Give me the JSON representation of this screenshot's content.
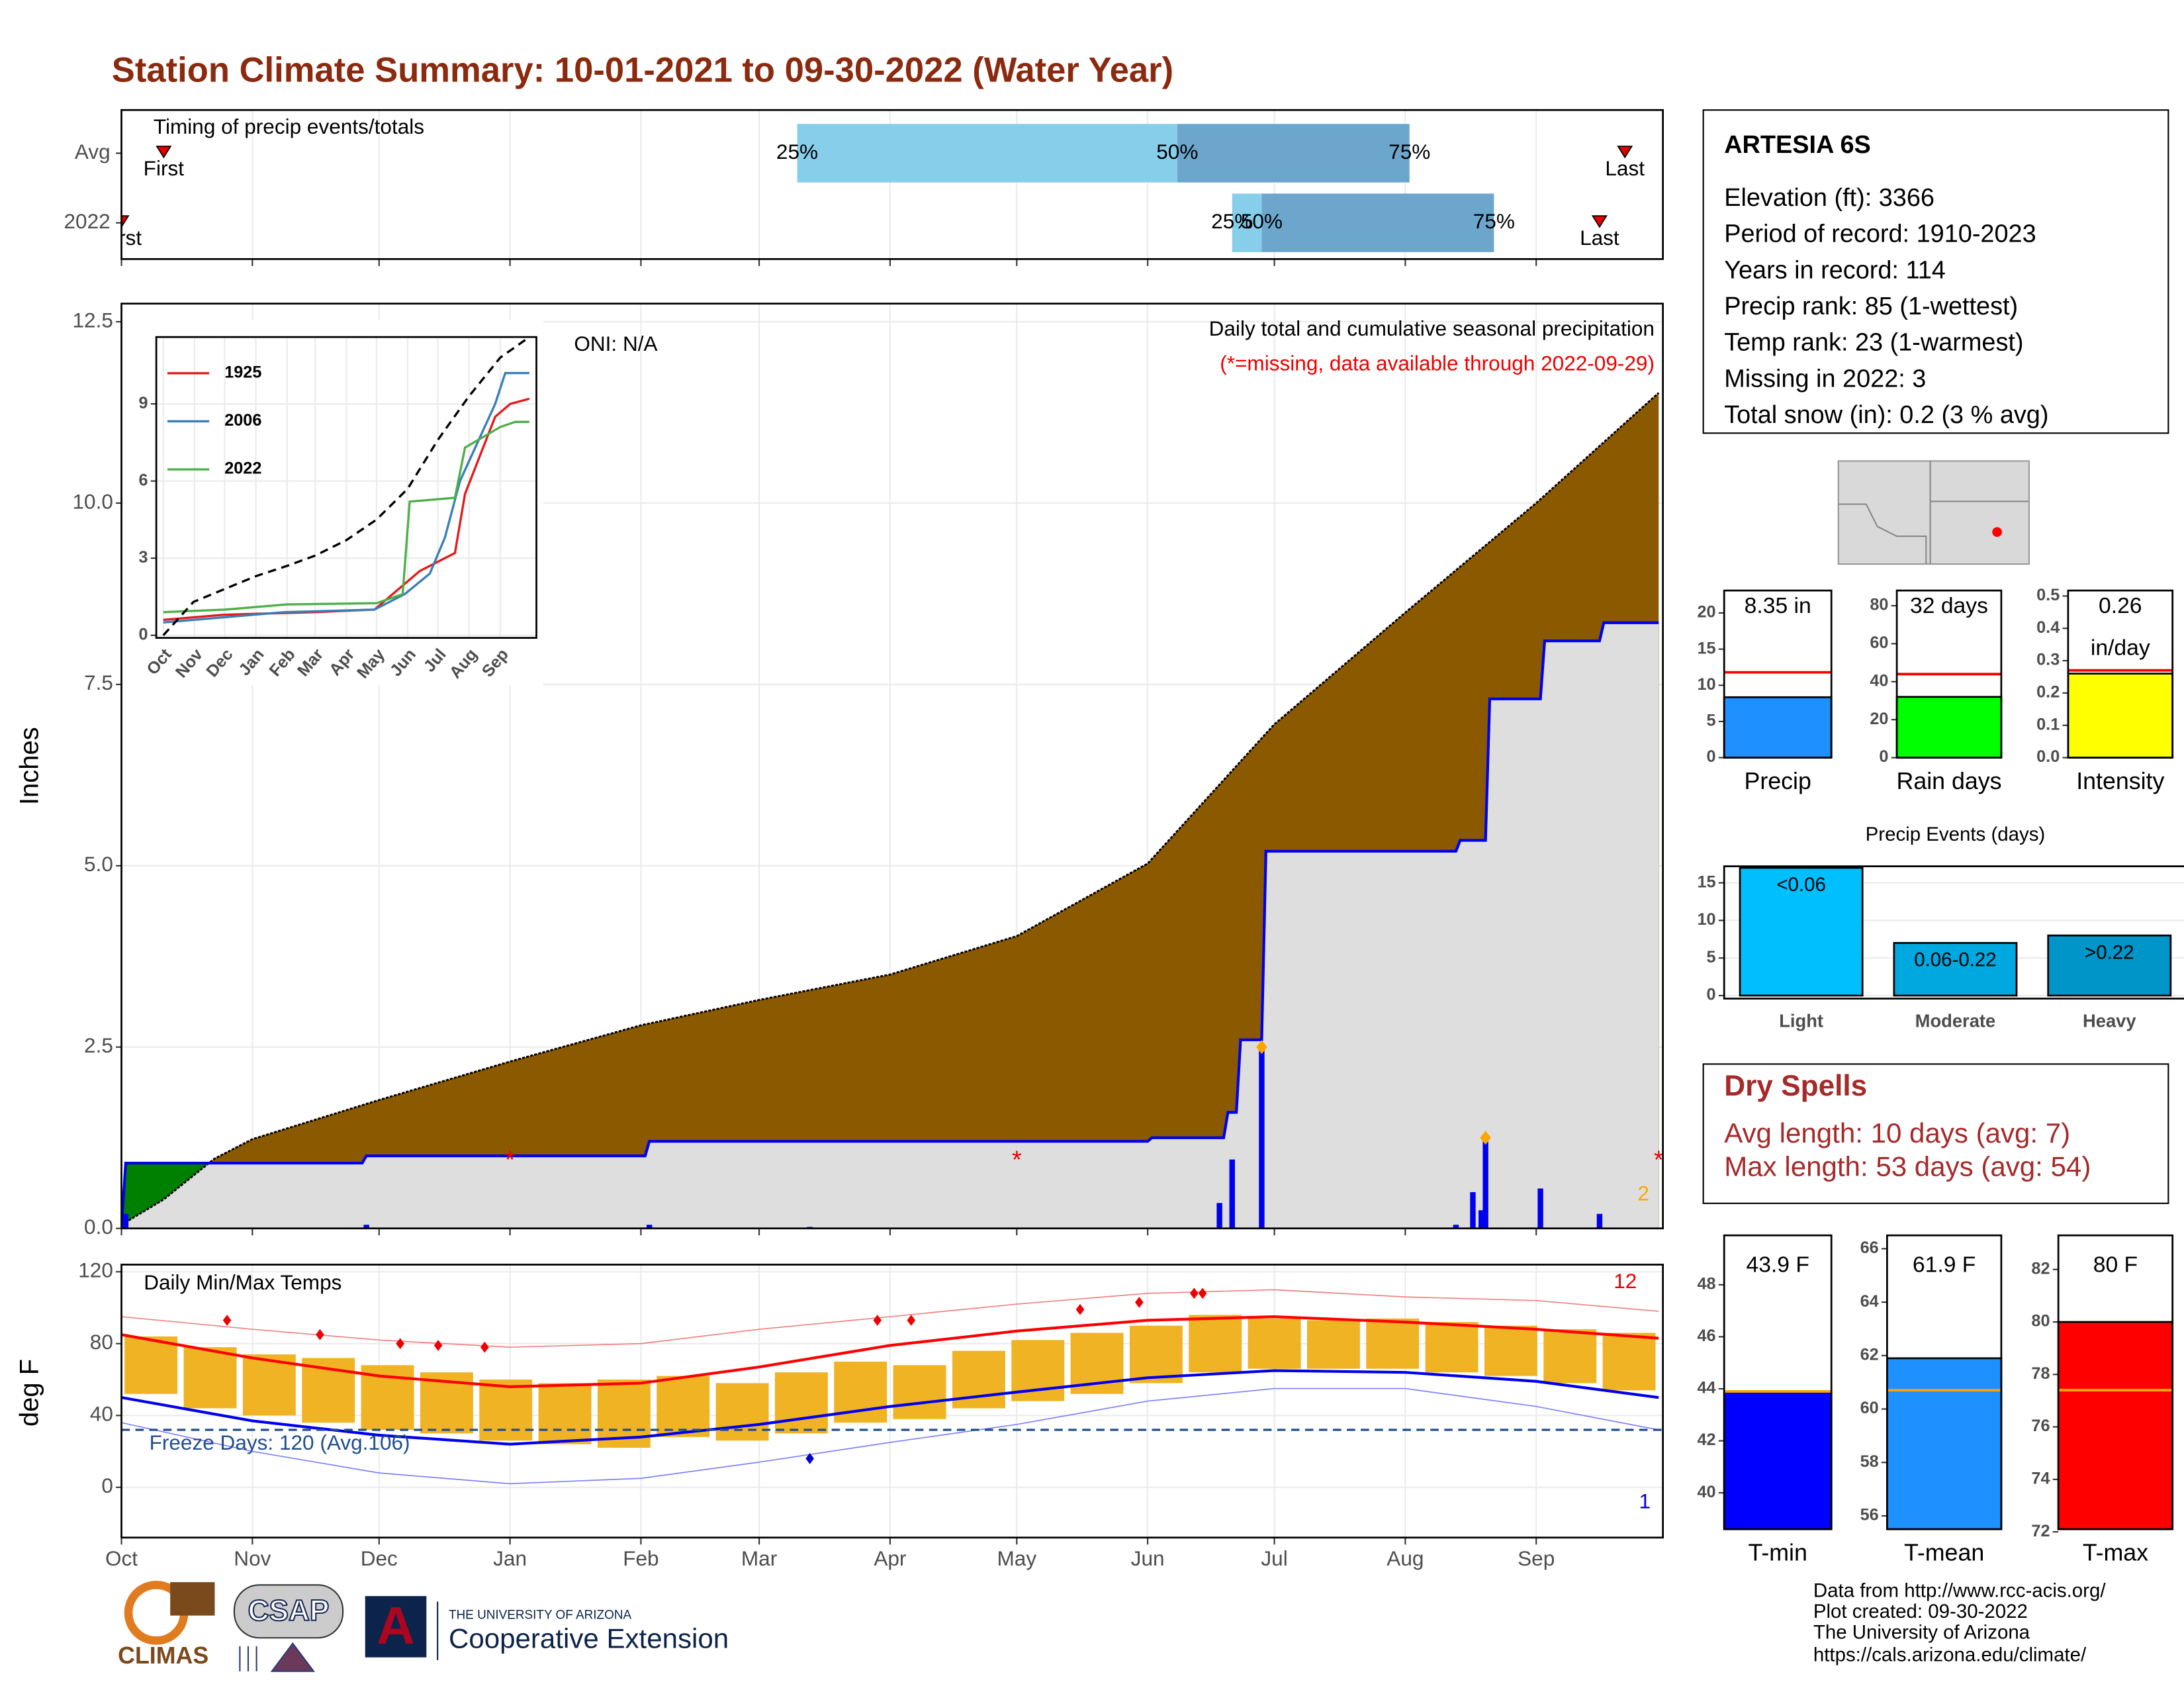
{
  "title": "Station Climate Summary: 10-01-2021 to 09-30-2022 (Water Year)",
  "chart_data": [
    {
      "type": "timing",
      "title": "Timing of precip events/totals",
      "categories": [
        "Avg",
        "2022"
      ],
      "rows": [
        {
          "first": 10,
          "last": 356,
          "p25": 160,
          "p50": 250,
          "p75": 305
        },
        {
          "first": 0,
          "last": 350,
          "p25": 263,
          "p50": 270,
          "p75": 325
        }
      ],
      "marker_labels": [
        "First",
        "Last"
      ],
      "percent_labels": [
        "25%",
        "50%",
        "75%"
      ],
      "colors": [
        "#87ceeb",
        "#6ca6cd"
      ]
    },
    {
      "type": "precip",
      "ylabel": "Inches",
      "annotations": [
        "ONI: N/A",
        "Daily total and cumulative seasonal precipitation",
        "(*=missing, data available through 2022-09-29)"
      ],
      "xlim": [
        0,
        365
      ],
      "xticks": [
        {
          "value": 0,
          "label": "Oct"
        },
        {
          "value": 31,
          "label": "Nov"
        },
        {
          "value": 61,
          "label": "Dec"
        },
        {
          "value": 92,
          "label": "Jan"
        },
        {
          "value": 123,
          "label": "Feb"
        },
        {
          "value": 151,
          "label": "Mar"
        },
        {
          "value": 182,
          "label": "Apr"
        },
        {
          "value": 212,
          "label": "May"
        },
        {
          "value": 243,
          "label": "Jun"
        },
        {
          "value": 273,
          "label": "Jul"
        },
        {
          "value": 304,
          "label": "Aug"
        },
        {
          "value": 335,
          "label": "Sep"
        }
      ],
      "ylim": [
        0,
        12.75
      ],
      "yticks": [
        {
          "value": 0,
          "label": "0.0"
        },
        2.5,
        {
          "value": 5,
          "label": "5.0"
        },
        7.5,
        {
          "value": 10,
          "label": "10.0"
        },
        12.5
      ],
      "grid": true,
      "avg_cumulative": {
        "x": [
          0,
          10,
          22,
          31,
          61,
          92,
          123,
          151,
          182,
          212,
          243,
          273,
          304,
          335,
          364
        ],
        "values": [
          0.05,
          0.4,
          0.96,
          1.23,
          1.77,
          2.3,
          2.8,
          3.15,
          3.5,
          4.03,
          5.03,
          6.95,
          8.49,
          10.0,
          11.52
        ],
        "color": "#8b5a00"
      },
      "cumulative_2022": {
        "x": [
          0,
          1,
          57,
          58,
          124,
          125,
          243,
          244,
          261,
          262,
          264,
          265,
          270,
          271,
          316,
          317,
          323,
          324,
          336,
          337,
          350,
          351,
          364
        ],
        "values": [
          0,
          0.9,
          0.9,
          1.0,
          1.0,
          1.2,
          1.2,
          1.25,
          1.25,
          1.6,
          1.6,
          2.6,
          2.6,
          5.2,
          5.2,
          5.35,
          5.35,
          7.3,
          7.3,
          8.1,
          8.1,
          8.35,
          8.35
        ],
        "color": "#0000ee"
      },
      "above_color": "#008000",
      "below_color": "#dedede",
      "daily": {
        "x": [
          1,
          58,
          125,
          163,
          260,
          263,
          270,
          316,
          320,
          322,
          323,
          336,
          350
        ],
        "values": [
          0.2,
          0.05,
          0.05,
          0.02,
          0.35,
          0.95,
          2.5,
          0.05,
          0.5,
          0.25,
          1.2,
          0.55,
          0.2
        ],
        "color": "#0000ee"
      },
      "flags": {
        "x": [
          270,
          323
        ],
        "values": [
          2.5,
          1.25
        ],
        "color": "#ffa500"
      },
      "missing": {
        "x": [
          92,
          212,
          364
        ],
        "values": [
          1.0,
          1.0,
          1.0
        ],
        "symbol": "*",
        "color": "#ee0000"
      },
      "count_label": "2"
    },
    {
      "type": "line",
      "ylim": [
        -0.1,
        11.6
      ],
      "xlim": [
        -7,
        371
      ],
      "yticks": [
        0,
        3,
        6,
        9
      ],
      "series": [
        {
          "name": "1925",
          "color": "#e41a1c",
          "x": [
            0,
            60,
            150,
            210,
            240,
            255,
            270,
            290,
            300,
            310,
            330,
            345,
            364
          ],
          "values": [
            0.6,
            0.8,
            0.9,
            1.0,
            2.0,
            2.5,
            2.8,
            3.2,
            5.5,
            6.5,
            8.5,
            9.0,
            9.2
          ]
        },
        {
          "name": "2006",
          "color": "#377eb8",
          "x": [
            0,
            120,
            210,
            240,
            265,
            280,
            295,
            330,
            340,
            364
          ],
          "values": [
            0.5,
            0.9,
            1.0,
            1.6,
            2.4,
            3.8,
            6.0,
            9.0,
            10.2,
            10.2
          ]
        },
        {
          "name": "2022",
          "color": "#4daf4a",
          "x": [
            0,
            61,
            123,
            212,
            238,
            245,
            290,
            300,
            335,
            350,
            364
          ],
          "values": [
            0.9,
            1.0,
            1.2,
            1.25,
            1.6,
            5.2,
            5.35,
            7.3,
            8.1,
            8.3,
            8.3
          ]
        }
      ],
      "average": {
        "x": [
          0,
          30,
          61,
          92,
          123,
          151,
          182,
          212,
          243,
          273,
          304,
          335,
          364
        ],
        "values": [
          0,
          1.3,
          1.8,
          2.3,
          2.7,
          3.1,
          3.7,
          4.5,
          5.7,
          7.6,
          9.3,
          10.8,
          11.6
        ],
        "color": "#000000"
      }
    },
    {
      "type": "temperature",
      "title": "Daily Min/Max Temps",
      "ylabel": "deg F",
      "ylim": [
        -28,
        124
      ],
      "yticks": [
        0,
        40,
        80,
        120
      ],
      "x": [
        7,
        21,
        35,
        49,
        63,
        77,
        91,
        105,
        119,
        133,
        147,
        161,
        175,
        189,
        203,
        217,
        231,
        245,
        259,
        273,
        287,
        301,
        315,
        329,
        343,
        357
      ],
      "highs": [
        84,
        78,
        74,
        72,
        68,
        64,
        60,
        58,
        60,
        62,
        58,
        64,
        70,
        68,
        76,
        82,
        86,
        90,
        96,
        94,
        93,
        94,
        92,
        90,
        88,
        86
      ],
      "lows": [
        52,
        44,
        40,
        36,
        32,
        30,
        26,
        24,
        22,
        28,
        26,
        30,
        36,
        38,
        44,
        48,
        52,
        58,
        64,
        66,
        66,
        66,
        64,
        62,
        58,
        54
      ],
      "bar_color": "#f0b323",
      "normal_x": [
        0,
        31,
        61,
        92,
        123,
        151,
        182,
        212,
        243,
        273,
        304,
        335,
        364
      ],
      "normal_high": [
        85,
        72,
        62,
        56,
        58,
        67,
        79,
        87,
        93,
        95,
        92,
        88,
        83
      ],
      "normal_low": [
        50,
        37,
        29,
        24,
        28,
        35,
        45,
        53,
        61,
        65,
        64,
        59,
        50
      ],
      "record_high": [
        95,
        88,
        82,
        78,
        80,
        88,
        95,
        102,
        108,
        110,
        106,
        104,
        98
      ],
      "record_low": [
        36,
        20,
        8,
        2,
        5,
        14,
        25,
        35,
        48,
        55,
        55,
        45,
        32
      ],
      "record_high_days": {
        "x": [
          25,
          47,
          66,
          75,
          86,
          179,
          187,
          227,
          241,
          254,
          256
        ],
        "values": [
          93,
          85,
          80,
          79,
          78,
          93,
          93,
          99,
          103,
          108,
          108
        ]
      },
      "record_low_days": {
        "x": [
          163
        ],
        "values": [
          16
        ]
      },
      "freeze_line": 32,
      "freeze_label": "Freeze Days: 120 (Avg.106)",
      "high_count": "12",
      "low_count": "1"
    },
    {
      "type": "bar",
      "label": "Precip",
      "value": 8.35,
      "value_labels": [
        "8.35 in"
      ],
      "avg": 11.8,
      "color": "#1e90ff",
      "ylim": [
        0,
        23.1
      ],
      "yticks": [
        0,
        5,
        10,
        15,
        20
      ]
    },
    {
      "type": "bar",
      "label": "Rain days",
      "value": 32,
      "value_labels": [
        "32 days"
      ],
      "avg": 44,
      "color": "#00ff00",
      "ylim": [
        0,
        88
      ],
      "yticks": [
        0,
        20,
        40,
        60,
        80
      ]
    },
    {
      "type": "bar",
      "label": "Intensity",
      "value": 0.26,
      "value_labels": [
        "0.26"
      ],
      "unit": "in/day",
      "avg": 0.27,
      "color": "#ffff00",
      "ylim": [
        0,
        0.517
      ],
      "yticks": [
        {
          "value": 0,
          "label": "0.0"
        },
        0.1,
        0.2,
        0.3,
        0.4,
        0.5
      ]
    },
    {
      "type": "events",
      "title": "Precip Events (days)",
      "categories": [
        "Light",
        "Moderate",
        "Heavy"
      ],
      "values": [
        17,
        7,
        8
      ],
      "value_labels": [
        "<0.06",
        "0.06-0.22",
        ">0.22"
      ],
      "colors": [
        "#00bfff",
        "#00a8e0",
        "#0095c8"
      ],
      "ylim": [
        -0.4,
        17.2
      ],
      "yticks": [
        0,
        5,
        10,
        15
      ]
    },
    {
      "type": "tbar",
      "label": "T-min",
      "value": 43.9,
      "value_labels": [
        "43.9 F"
      ],
      "avg": 43.9,
      "color": "#0000ff",
      "ylim": [
        38.6,
        49.9
      ],
      "yticks": [
        40,
        42,
        44,
        46,
        48
      ]
    },
    {
      "type": "tbar",
      "label": "T-mean",
      "value": 61.9,
      "value_labels": [
        "61.9 F"
      ],
      "avg": 60.7,
      "color": "#1e90ff",
      "ylim": [
        55.5,
        66.5
      ],
      "yticks": [
        56,
        58,
        60,
        62,
        64,
        66
      ]
    },
    {
      "type": "tbar",
      "label": "T-max",
      "value": 80,
      "value_labels": [
        "80 F"
      ],
      "avg": 77.4,
      "color": "#ff0000",
      "ylim": [
        72.1,
        83.3
      ],
      "yticks": [
        72,
        74,
        76,
        78,
        80,
        82
      ]
    }
  ],
  "station": {
    "name": "ARTESIA 6S",
    "lines": [
      "Elevation (ft): 3366",
      "Period of record: 1910-2023",
      "Years in record: 114",
      "Precip rank: 85 (1-wettest)",
      "Temp rank: 23 (1-warmest)",
      "Missing in 2022: 3",
      "Total snow (in): 0.2 (3 % avg)"
    ]
  },
  "dry_spells": {
    "title": "Dry Spells",
    "lines": [
      "Avg length: 10 days (avg: 7)",
      "Max length: 53 days (avg: 54)"
    ]
  },
  "credits": [
    "Data from http://www.rcc-acis.org/",
    "Plot created: 09-30-2022",
    "The University of Arizona",
    "https://cals.arizona.edu/climate/"
  ],
  "logos": [
    "CLIMAS",
    "CSAP",
    "A",
    "THE UNIVERSITY OF ARIZONA",
    "Cooperative Extension"
  ]
}
